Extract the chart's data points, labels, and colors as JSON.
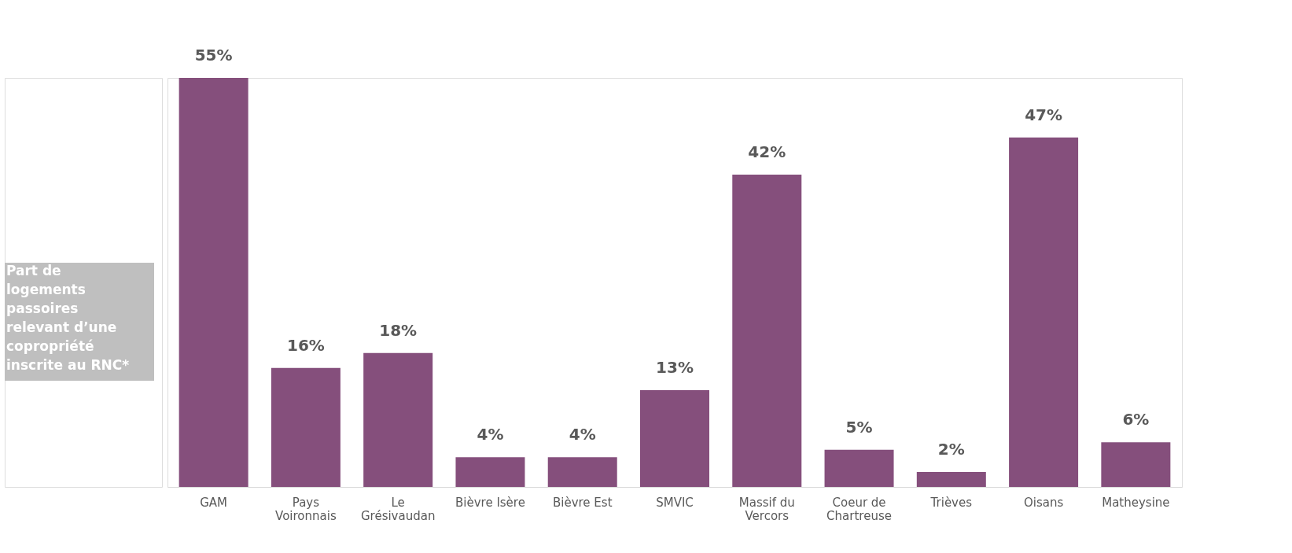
{
  "chart_data": {
    "type": "bar",
    "ylabel": "Part de logements passoires relevant  d’une copropriété inscrite au RNC*",
    "categories": [
      "GAM",
      "Pays Voironnais",
      "Le Grésivaudan",
      "Bièvre Isère",
      "Bièvre Est",
      "SMVIC",
      "Massif du Vercors",
      "Coeur de Chartreuse",
      "Trièves",
      "Oisans",
      "Matheysine"
    ],
    "values": [
      55,
      16,
      18,
      4,
      4,
      13,
      42,
      5,
      2,
      47,
      6
    ],
    "value_labels": [
      "55%",
      "16%",
      "18%",
      "4%",
      "4%",
      "13%",
      "42%",
      "5%",
      "2%",
      "47%",
      "6%"
    ],
    "color": "#854f7c",
    "grid": false
  }
}
